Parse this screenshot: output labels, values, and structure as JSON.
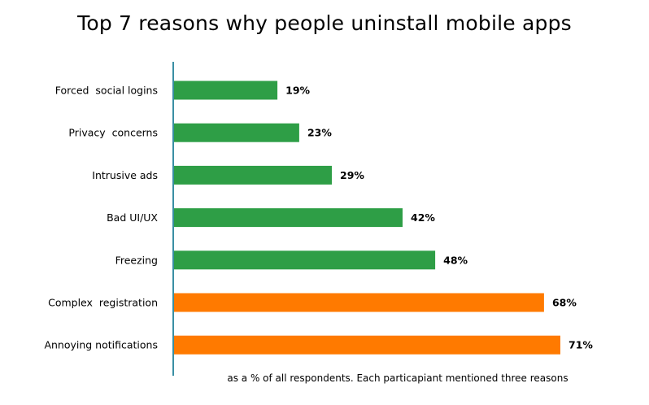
{
  "chart_data": {
    "type": "bar",
    "orientation": "horizontal",
    "title": "Top 7 reasons why people uninstall mobile apps",
    "footnote": "as a % of all respondents.  Each particapiant mentioned three reasons",
    "categories": [
      "Forced  social logins",
      "Privacy  concerns",
      "Intrusive ads",
      "Bad UI/UX",
      "Freezing",
      "Complex  registration",
      "Annoying notifications"
    ],
    "values": [
      19,
      23,
      29,
      42,
      48,
      68,
      71
    ],
    "value_labels": [
      "19%",
      "23%",
      "29%",
      "42%",
      "48%",
      "68%",
      "71%"
    ],
    "bar_colors": [
      "#2e9e46",
      "#2e9e46",
      "#2e9e46",
      "#2e9e46",
      "#2e9e46",
      "#ff7a00",
      "#ff7a00"
    ],
    "axis_color": "#3a8fa4",
    "xlim": [
      0,
      71
    ],
    "grid": false,
    "legend": "none"
  }
}
